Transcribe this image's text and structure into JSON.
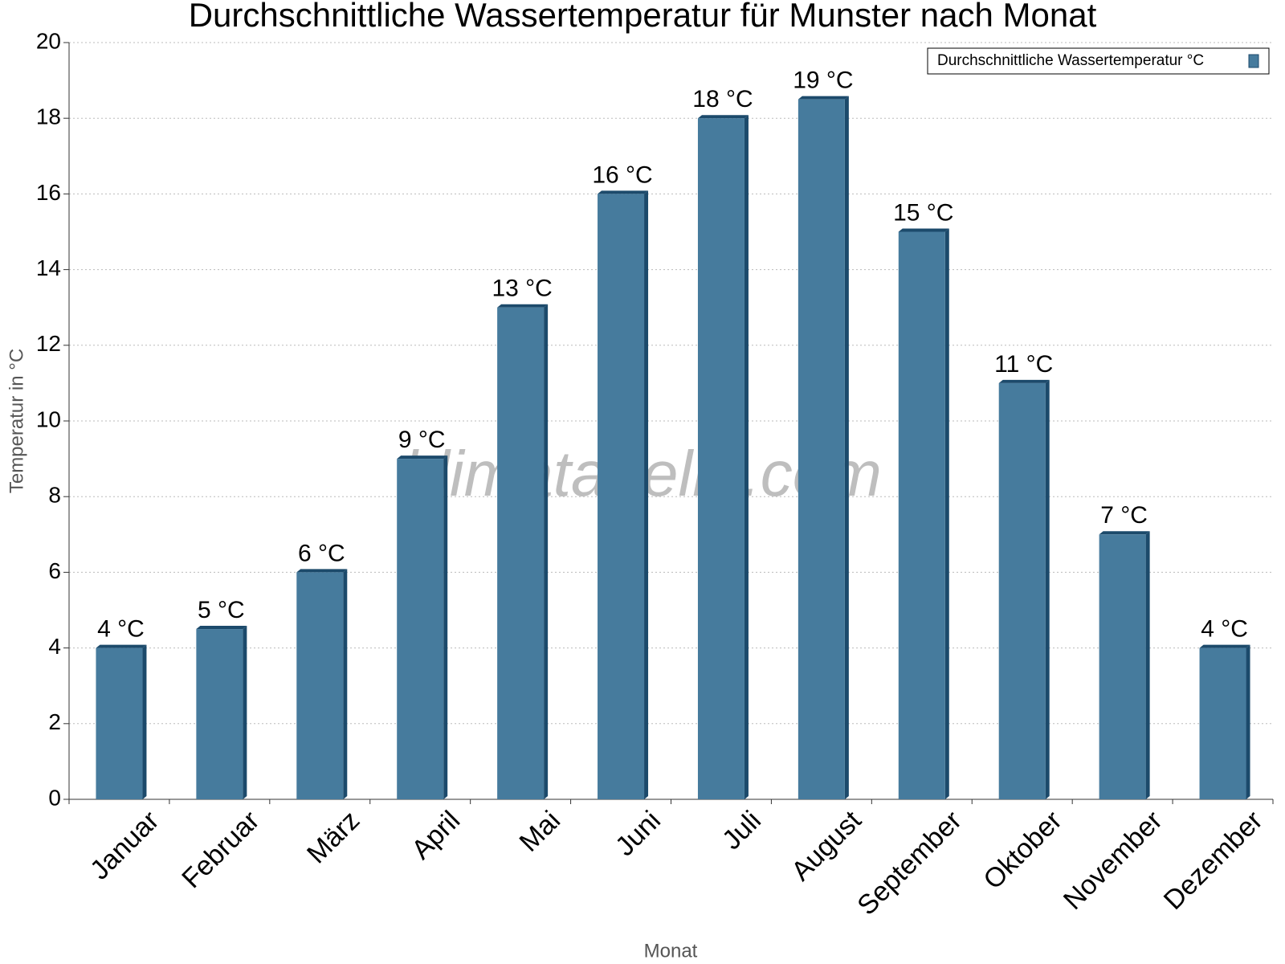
{
  "chart_data": {
    "type": "bar",
    "title": "Durchschnittliche Wassertemperatur für Munster nach Monat",
    "x_label": "Monat",
    "y_label": "Temperatur in °C",
    "watermark": "klimatabelle.com",
    "categories": [
      "Januar",
      "Februar",
      "März",
      "April",
      "Mai",
      "Juni",
      "Juli",
      "August",
      "September",
      "Oktober",
      "November",
      "Dezember"
    ],
    "series": [
      {
        "name": "Durchschnittliche Wassertemperatur °C",
        "color": "#467b9d",
        "values": [
          4,
          4.5,
          6,
          9,
          13,
          16,
          18,
          18.5,
          15,
          11,
          7,
          4
        ],
        "value_labels": [
          "4 °C",
          "5 °C",
          "6 °C",
          "9 °C",
          "13 °C",
          "16 °C",
          "18 °C",
          "19 °C",
          "15 °C",
          "11 °C",
          "7 °C",
          "4 °C"
        ]
      }
    ],
    "ylim": [
      0,
      20
    ],
    "yticks": [
      0,
      2,
      4,
      6,
      8,
      10,
      12,
      14,
      16,
      18,
      20
    ],
    "grid": true,
    "legend": "top-right"
  }
}
